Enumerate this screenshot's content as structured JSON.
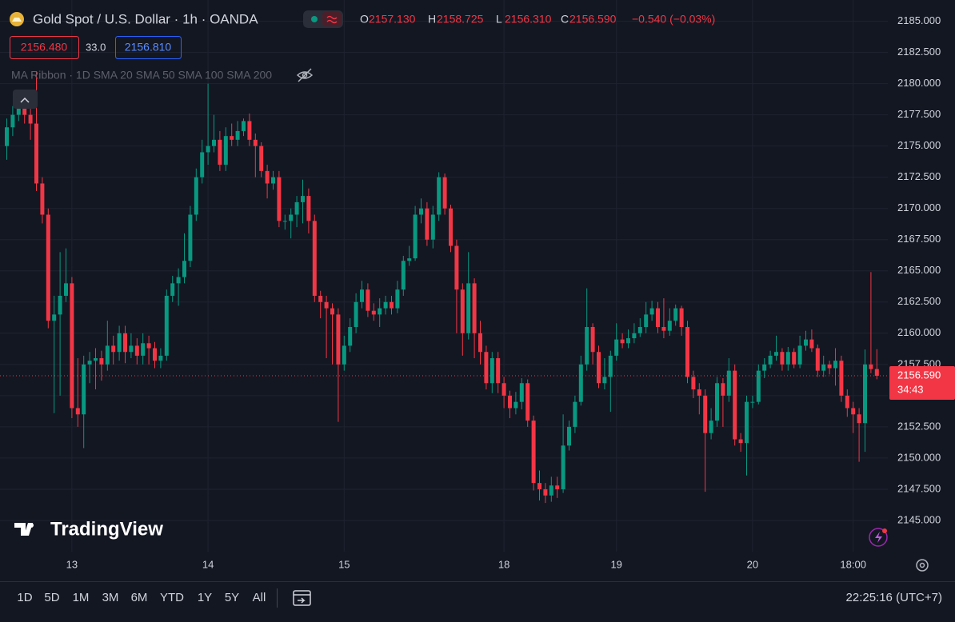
{
  "header": {
    "title": "Gold Spot / U.S. Dollar · 1h · OANDA",
    "ohlc": [
      {
        "label": "O",
        "value": "2157.130"
      },
      {
        "label": "H",
        "value": "2158.725"
      },
      {
        "label": "L",
        "value": "2156.310"
      },
      {
        "label": "C",
        "value": "2156.590"
      }
    ],
    "change": "−0.540 (−0.03%)",
    "bid": "2156.480",
    "spread": "33.0",
    "ask": "2156.810",
    "indicator": "MA Ribbon · 1D SMA 20 SMA 50 SMA 100 SMA 200",
    "logo": "TradingView"
  },
  "toolbar": {
    "ranges": [
      "1D",
      "5D",
      "1M",
      "3M",
      "6M",
      "YTD",
      "1Y",
      "5Y",
      "All"
    ],
    "clock": "22:25:16 (UTC+7)"
  },
  "chart_data": {
    "type": "candlestick",
    "categories": [
      null,
      null,
      null,
      null,
      null,
      null,
      null,
      null,
      null,
      null,
      null,
      "13",
      null,
      null,
      null,
      null,
      null,
      null,
      null,
      null,
      null,
      null,
      null,
      null,
      null,
      null,
      null,
      null,
      null,
      null,
      null,
      null,
      null,
      null,
      "14",
      null,
      null,
      null,
      null,
      null,
      null,
      null,
      null,
      null,
      null,
      null,
      null,
      null,
      null,
      null,
      null,
      null,
      null,
      null,
      null,
      null,
      null,
      "15",
      null,
      null,
      null,
      null,
      null,
      null,
      null,
      null,
      null,
      null,
      null,
      null,
      null,
      null,
      null,
      null,
      null,
      null,
      null,
      null,
      null,
      null,
      null,
      null,
      null,
      null,
      "18",
      null,
      null,
      null,
      null,
      null,
      null,
      null,
      null,
      null,
      null,
      null,
      null,
      null,
      null,
      null,
      null,
      null,
      null,
      "19",
      null,
      null,
      null,
      null,
      null,
      null,
      null,
      null,
      null,
      null,
      null,
      null,
      null,
      null,
      null,
      null,
      null,
      null,
      null,
      null,
      null,
      null,
      "20",
      null,
      null,
      null,
      null,
      null,
      null,
      null,
      null,
      null,
      null,
      null,
      null,
      null,
      null,
      null,
      null,
      "18:00",
      null,
      null,
      null,
      null
    ],
    "open": [
      2175,
      2176.5,
      2177.5,
      2178,
      2177.5,
      2176.8,
      2172,
      2169.5,
      2161,
      2161.5,
      2163,
      2164,
      2154,
      2153.5,
      2157.5,
      2157.8,
      2158,
      2157.5,
      2159,
      2158.5,
      2160,
      2158.5,
      2159,
      2158.2,
      2159.2,
      2158.8,
      2157.8,
      2158.2,
      2163,
      2164,
      2164.5,
      2165.8,
      2169.5,
      2172.5,
      2174.5,
      2175,
      2175.5,
      2173.5,
      2175.8,
      2175.5,
      2176.2,
      2177,
      2175.5,
      2175,
      2173,
      2172,
      2172.5,
      2169,
      2169,
      2169.5,
      2170.5,
      2171,
      2169,
      2163,
      2162.5,
      2162,
      2161.5,
      2157.5,
      2159,
      2160.5,
      2162.5,
      2163.5,
      2161.8,
      2161.5,
      2162,
      2162.5,
      2162,
      2163.5,
      2165.8,
      2166,
      2169.5,
      2170,
      2167.5,
      2169.5,
      2172.5,
      2170,
      2167,
      2163.5,
      2160,
      2164,
      2160,
      2158.5,
      2156,
      2158,
      2156,
      2155,
      2154,
      2154.5,
      2156,
      2153,
      2148,
      2147.5,
      2147,
      2147.8,
      2147.5,
      2151,
      2152.5,
      2154.5,
      2157.5,
      2160.5,
      2158.5,
      2156,
      2156.5,
      2158.2,
      2159.5,
      2159.2,
      2159.6,
      2160,
      2160.5,
      2161.5,
      2162,
      2160.5,
      2160.2,
      2161,
      2162,
      2160.5,
      2156.5,
      2155.5,
      2155,
      2152,
      2153,
      2156,
      2155,
      2157,
      2151.5,
      2151.2,
      2154.5,
      2154.5,
      2157,
      2157.5,
      2158.2,
      2158.5,
      2157.5,
      2158.5,
      2157.5,
      2159,
      2159.5,
      2158.8,
      2157,
      2157.5,
      2157.2,
      2157.8,
      2155,
      2154,
      2153.5,
      2152.8,
      2157.5,
      2157.13
    ],
    "high": [
      2177.2,
      2178.2,
      2178.8,
      2178.6,
      2178.2,
      2181,
      2172.5,
      2170,
      2163,
      2166.5,
      2166.8,
      2164.5,
      2158,
      2158.2,
      2158.5,
      2158.8,
      2158.6,
      2161,
      2159.8,
      2160.6,
      2160.6,
      2160,
      2159.6,
      2160,
      2159.8,
      2159.3,
      2158.8,
      2163.5,
      2164.6,
      2165.2,
      2168,
      2170.2,
      2173.2,
      2175.5,
      2180,
      2177.5,
      2176.2,
      2176.5,
      2176.8,
      2177,
      2177.2,
      2177.6,
      2176,
      2175.3,
      2173.5,
      2173,
      2173,
      2169.5,
      2170,
      2171,
      2172.3,
      2171.6,
      2169.5,
      2163.4,
      2163,
      2162.4,
      2162,
      2159.8,
      2161.2,
      2163.2,
      2164.2,
      2164,
      2162.4,
      2162.8,
      2163,
      2163,
      2164.2,
      2166.2,
      2167,
      2170.2,
      2170.8,
      2170.5,
      2170.2,
      2172.9,
      2172.8,
      2170.3,
      2167.5,
      2164,
      2166.5,
      2164.4,
      2161,
      2159,
      2158.5,
      2158.5,
      2156.5,
      2155.4,
      2155.3,
      2156.4,
      2156.3,
      2153.4,
      2149,
      2148,
      2148.5,
      2148.5,
      2153.5,
      2153,
      2155,
      2158.2,
      2163.6,
      2160.8,
      2159,
      2158,
      2158.6,
      2160.8,
      2160,
      2160.3,
      2160.8,
      2161.2,
      2162.5,
      2162.6,
      2162.5,
      2162.8,
      2162,
      2162.3,
      2162.2,
      2161,
      2157,
      2156,
      2155.5,
      2154,
      2156.5,
      2156.4,
      2158,
      2157.5,
      2152,
      2155,
      2155,
      2157.5,
      2158,
      2158.6,
      2159.8,
      2158.8,
      2158.9,
      2158.8,
      2159.8,
      2160.2,
      2160.3,
      2159.1,
      2158.2,
      2157.8,
      2158.8,
      2158.2,
      2155.5,
      2154.5,
      2154,
      2158.7,
      2164.9,
      2158.725
    ],
    "low": [
      2173.9,
      2175.8,
      2177,
      2176.8,
      2175.5,
      2171.4,
      2168.8,
      2160.4,
      2153.6,
      2155,
      2162.5,
      2153.2,
      2152.5,
      2150.8,
      2156,
      2155.5,
      2156.2,
      2157,
      2157.5,
      2157.8,
      2157.6,
      2158,
      2157.5,
      2157.5,
      2157.5,
      2157.2,
      2157.2,
      2157.8,
      2162.5,
      2162.2,
      2164,
      2165.3,
      2169,
      2172,
      2173.5,
      2174.5,
      2173,
      2173,
      2175,
      2175,
      2175.8,
      2175,
      2172.5,
      2172.5,
      2170.8,
      2171.5,
      2168.5,
      2168.3,
      2167.6,
      2168.5,
      2168.8,
      2168,
      2162.5,
      2161.2,
      2158,
      2157.5,
      2152.9,
      2157,
      2158.5,
      2160,
      2162,
      2161.3,
      2161,
      2160.5,
      2161.5,
      2161.5,
      2161.6,
      2163,
      2165.4,
      2165.8,
      2168.8,
      2167,
      2166.8,
      2169,
      2169.5,
      2166.5,
      2160,
      2158.2,
      2159.5,
      2158,
      2157.5,
      2155.5,
      2155.2,
      2155.2,
      2154,
      2153.2,
      2153.5,
      2153.9,
      2152.5,
      2147.4,
      2146.6,
      2146.4,
      2146.5,
      2146.8,
      2147.2,
      2150.6,
      2152,
      2154.2,
      2157,
      2157.5,
      2155.6,
      2155.5,
      2153.7,
      2157.8,
      2158.8,
      2158.8,
      2159.2,
      2159.7,
      2160,
      2161,
      2160,
      2159.6,
      2159.8,
      2160.6,
      2159.8,
      2156,
      2154.8,
      2153.5,
      2147.3,
      2151.5,
      2152.5,
      2152.5,
      2154.5,
      2151,
      2150.5,
      2148.6,
      2154,
      2154.3,
      2156.4,
      2157.2,
      2157.8,
      2157,
      2157,
      2157.2,
      2157.2,
      2158.6,
      2158.5,
      2156.5,
      2156.5,
      2156.7,
      2155.8,
      2154.5,
      2153.3,
      2152,
      2149.7,
      2150.5,
      2156.8,
      2156.31
    ],
    "close": [
      2176.5,
      2177.5,
      2178,
      2177.5,
      2176.8,
      2172,
      2169.5,
      2161,
      2161.5,
      2163,
      2164,
      2154,
      2153.5,
      2157.5,
      2157.8,
      2158,
      2157.5,
      2159,
      2158.5,
      2160,
      2158.5,
      2159,
      2158.2,
      2159.2,
      2158.8,
      2157.8,
      2158.2,
      2163,
      2164,
      2164.5,
      2165.8,
      2169.5,
      2172.5,
      2174.5,
      2175,
      2175.5,
      2173.5,
      2175.8,
      2175.5,
      2176.2,
      2177,
      2175.5,
      2175,
      2173,
      2172,
      2172.5,
      2169,
      2169,
      2169.5,
      2170.5,
      2171,
      2169,
      2163,
      2162.5,
      2162,
      2161.5,
      2157.5,
      2159,
      2160.5,
      2162.5,
      2163.5,
      2161.8,
      2161.5,
      2162,
      2162.5,
      2162,
      2163.5,
      2165.8,
      2166,
      2169.5,
      2170,
      2167.5,
      2169.5,
      2172.5,
      2170,
      2167,
      2163.5,
      2160,
      2164,
      2160,
      2158.5,
      2156,
      2158,
      2156,
      2155,
      2154,
      2154.5,
      2156,
      2153,
      2148,
      2147.5,
      2147,
      2147.8,
      2147.5,
      2151,
      2152.5,
      2154.5,
      2157.5,
      2160.5,
      2158.5,
      2156,
      2156.5,
      2158.2,
      2159.5,
      2159.2,
      2159.6,
      2160,
      2160.5,
      2161.5,
      2162,
      2160.5,
      2160.2,
      2161,
      2162,
      2160.5,
      2156.5,
      2155.5,
      2155,
      2152,
      2153,
      2156,
      2155,
      2157,
      2151.5,
      2151.2,
      2154.5,
      2154.5,
      2157,
      2157.5,
      2158.2,
      2158.5,
      2157.5,
      2158.5,
      2157.5,
      2159,
      2159.5,
      2158.8,
      2157,
      2157.5,
      2157.2,
      2157.8,
      2155,
      2154,
      2153.5,
      2152.8,
      2157.5,
      2157.13,
      2156.59
    ],
    "up_color": "#089981",
    "down_color": "#f23645",
    "ylim": [
      2142.5,
      2186.7
    ],
    "yticks": [
      {
        "value": 2145,
        "label": "2145.000"
      },
      {
        "value": 2147.5,
        "label": "2147.500"
      },
      {
        "value": 2150,
        "label": "2150.000"
      },
      {
        "value": 2152.5,
        "label": "2152.500"
      },
      {
        "value": 2155,
        "label": "2155.000"
      },
      {
        "value": 2157.5,
        "label": "2157.500"
      },
      {
        "value": 2160,
        "label": "2160.000"
      },
      {
        "value": 2162.5,
        "label": "2162.500"
      },
      {
        "value": 2165,
        "label": "2165.000"
      },
      {
        "value": 2167.5,
        "label": "2167.500"
      },
      {
        "value": 2170,
        "label": "2170.000"
      },
      {
        "value": 2172.5,
        "label": "2172.500"
      },
      {
        "value": 2175,
        "label": "2175.000"
      },
      {
        "value": 2177.5,
        "label": "2177.500"
      },
      {
        "value": 2180,
        "label": "2180.000"
      },
      {
        "value": 2182.5,
        "label": "2182.500"
      },
      {
        "value": 2185,
        "label": "2185.000"
      }
    ],
    "grid": true,
    "last_label": "2156.590",
    "countdown": "34:43"
  }
}
